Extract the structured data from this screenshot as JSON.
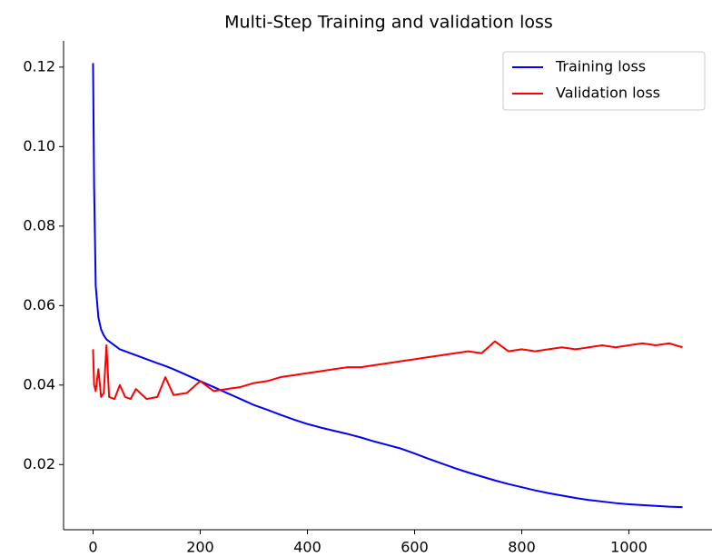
{
  "chart_data": {
    "type": "line",
    "title": "Multi-Step Training and validation loss",
    "x": [
      0,
      2,
      5,
      10,
      15,
      20,
      25,
      30,
      40,
      50,
      60,
      70,
      80,
      100,
      120,
      135,
      150,
      175,
      200,
      225,
      250,
      275,
      300,
      325,
      350,
      375,
      400,
      425,
      450,
      475,
      500,
      525,
      550,
      575,
      600,
      625,
      650,
      675,
      700,
      725,
      750,
      775,
      800,
      825,
      850,
      875,
      900,
      925,
      950,
      975,
      1000,
      1025,
      1050,
      1075,
      1100
    ],
    "series": [
      {
        "name": "Training loss",
        "color": "#0000ff",
        "values": [
          0.121,
          0.09,
          0.065,
          0.057,
          0.054,
          0.0525,
          0.0515,
          0.051,
          0.05,
          0.049,
          0.0485,
          0.048,
          0.0475,
          0.0465,
          0.0455,
          0.0448,
          0.044,
          0.0425,
          0.041,
          0.0395,
          0.038,
          0.0365,
          0.035,
          0.0338,
          0.0325,
          0.0313,
          0.0302,
          0.0293,
          0.0285,
          0.0277,
          0.0268,
          0.0258,
          0.0249,
          0.024,
          0.0228,
          0.0215,
          0.0203,
          0.0191,
          0.018,
          0.017,
          0.016,
          0.0151,
          0.0143,
          0.0135,
          0.0128,
          0.0122,
          0.0116,
          0.0111,
          0.0107,
          0.0103,
          0.01,
          0.0098,
          0.0096,
          0.0094,
          0.0093
        ]
      },
      {
        "name": "Validation loss",
        "color": "#ff0000",
        "values": [
          0.049,
          0.04,
          0.0385,
          0.044,
          0.037,
          0.038,
          0.05,
          0.037,
          0.0365,
          0.04,
          0.037,
          0.0365,
          0.039,
          0.0365,
          0.037,
          0.042,
          0.0375,
          0.038,
          0.041,
          0.0385,
          0.039,
          0.0395,
          0.0405,
          0.041,
          0.042,
          0.0425,
          0.043,
          0.0435,
          0.044,
          0.0445,
          0.0445,
          0.045,
          0.0455,
          0.046,
          0.0465,
          0.047,
          0.0475,
          0.048,
          0.0485,
          0.048,
          0.051,
          0.0485,
          0.049,
          0.0485,
          0.049,
          0.0495,
          0.049,
          0.0495,
          0.05,
          0.0495,
          0.05,
          0.0505,
          0.05,
          0.0505,
          0.0495
        ]
      }
    ],
    "xlim": [
      -55,
      1155
    ],
    "ylim": [
      0.0036,
      0.1266
    ],
    "xticks": [
      0,
      200,
      400,
      600,
      800,
      1000
    ],
    "yticks": [
      0.02,
      0.04,
      0.06,
      0.08,
      {
        "value": 0.1,
        "label": "0.10"
      },
      0.12
    ],
    "legend": "upper right",
    "grid": false
  }
}
